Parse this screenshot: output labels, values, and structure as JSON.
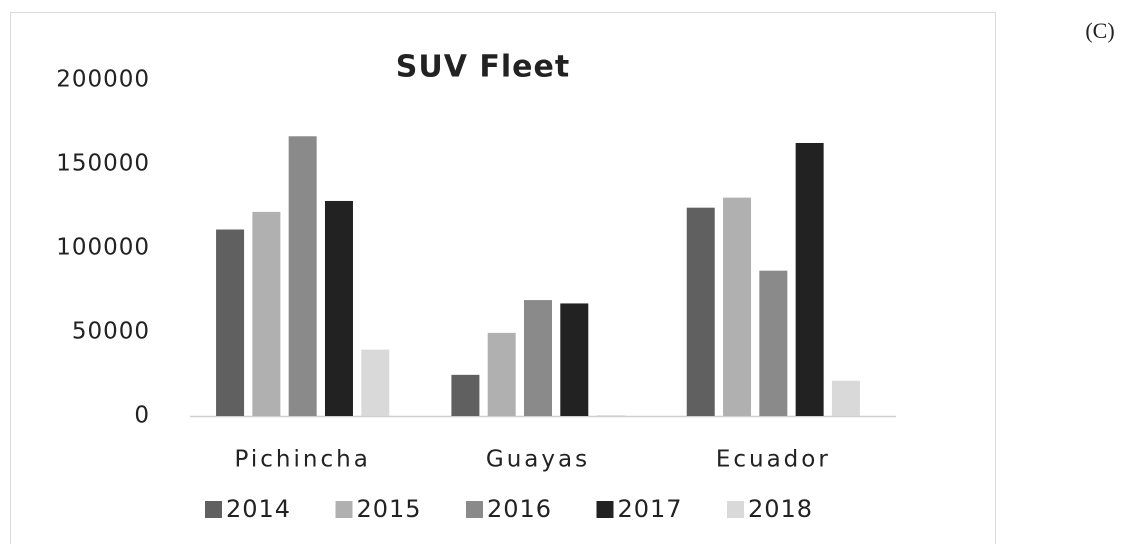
{
  "panel_label": "(C)",
  "chart_data": {
    "type": "bar",
    "title": "SUV Fleet",
    "categories": [
      "Pichincha",
      "Guayas",
      "Ecuador"
    ],
    "series": [
      {
        "name": "2014",
        "color": "#606060",
        "values": [
          111000,
          24500,
          124000
        ]
      },
      {
        "name": "2015",
        "color": "#b0b0b0",
        "values": [
          121500,
          49500,
          130000
        ]
      },
      {
        "name": "2016",
        "color": "#8a8a8a",
        "values": [
          166500,
          69000,
          86500
        ]
      },
      {
        "name": "2017",
        "color": "#222222",
        "values": [
          128000,
          67000,
          162500
        ]
      },
      {
        "name": "2018",
        "color": "#d9d9d9",
        "values": [
          39500,
          500,
          21000
        ]
      }
    ],
    "ylim": [
      0,
      200000
    ],
    "yticks": [
      0,
      50000,
      100000,
      150000,
      200000
    ],
    "grid": false,
    "legend": "bottom"
  }
}
